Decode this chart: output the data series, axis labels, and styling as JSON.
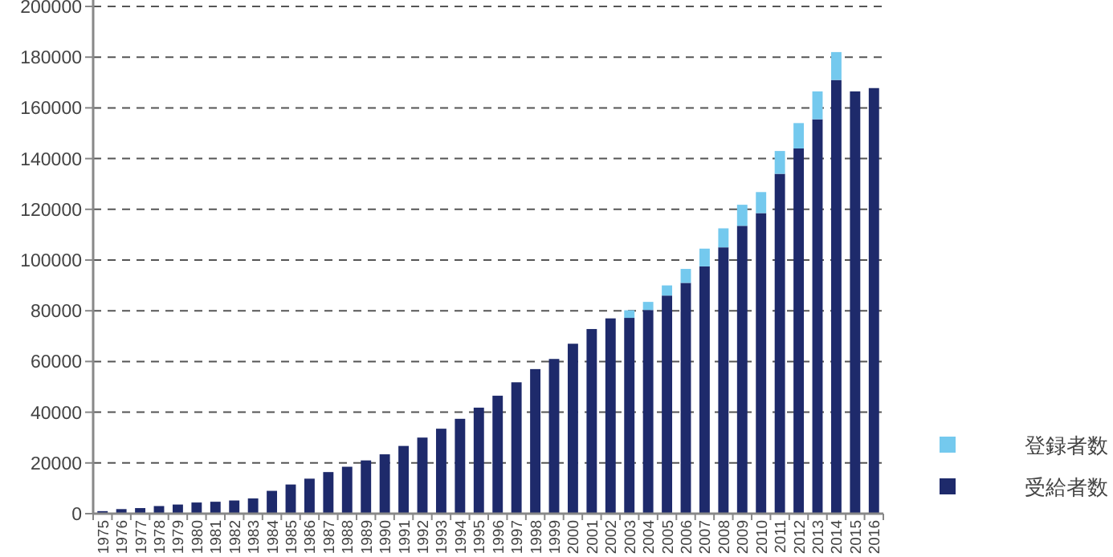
{
  "chart_data": {
    "type": "bar",
    "stacked": true,
    "grid": "y",
    "legend": "bottom right",
    "categories": [
      "1975",
      "1976",
      "1977",
      "1978",
      "1979",
      "1980",
      "1981",
      "1982",
      "1983",
      "1984",
      "1985",
      "1986",
      "1987",
      "1988",
      "1989",
      "1990",
      "1991",
      "1992",
      "1993",
      "1994",
      "1995",
      "1996",
      "1997",
      "1998",
      "1999",
      "2000",
      "2001",
      "2002",
      "2003",
      "2004",
      "2005",
      "2006",
      "2007",
      "2008",
      "2009",
      "2010",
      "2011",
      "2012",
      "2013",
      "2014",
      "2015",
      "2016"
    ],
    "series": [
      {
        "name": "受給者数",
        "color": "#1e2a6b",
        "values": [
          1000,
          1800,
          2200,
          3000,
          3600,
          4400,
          4700,
          5200,
          6000,
          9000,
          11500,
          13800,
          16400,
          18500,
          21000,
          23400,
          26700,
          30000,
          33500,
          37400,
          41800,
          46500,
          51800,
          57000,
          61000,
          67000,
          72800,
          77000,
          77200,
          80300,
          86000,
          91000,
          97500,
          105000,
          113500,
          118500,
          134000,
          144000,
          155500,
          171000,
          166500,
          167800
        ]
      },
      {
        "name": "登録者数",
        "color": "#74c9ee",
        "values": [
          null,
          null,
          null,
          null,
          null,
          null,
          null,
          null,
          null,
          null,
          null,
          null,
          null,
          null,
          null,
          null,
          null,
          null,
          null,
          null,
          null,
          null,
          null,
          null,
          null,
          null,
          null,
          null,
          3000,
          3200,
          4000,
          5500,
          7000,
          7500,
          8300,
          8300,
          9000,
          10000,
          11000,
          11000,
          null,
          null
        ]
      }
    ],
    "ylim": [
      0,
      200000
    ],
    "yticks": [
      0,
      20000,
      40000,
      60000,
      80000,
      100000,
      120000,
      140000,
      160000,
      180000,
      200000
    ]
  }
}
